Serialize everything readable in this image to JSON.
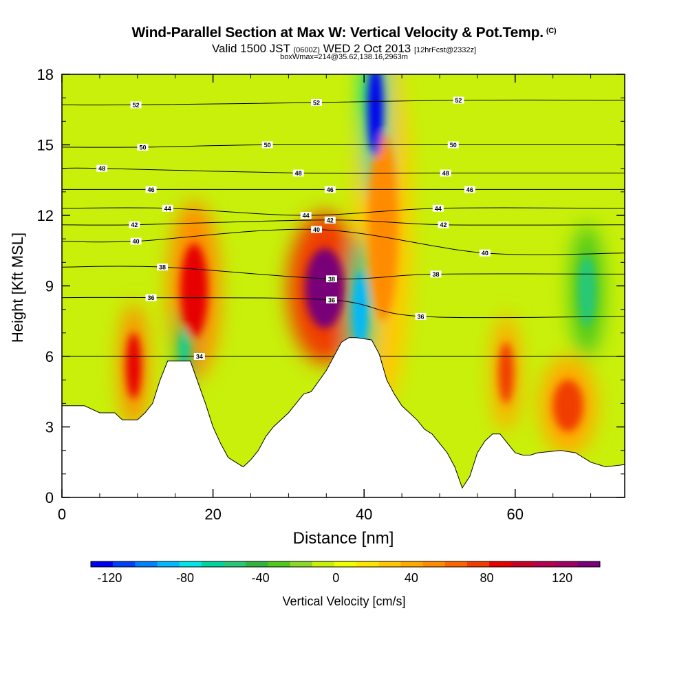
{
  "header": {
    "title": "Wind-Parallel Section at Max W: Vertical Velocity & Pot.Temp.",
    "copyright": "(C)",
    "valid_prefix": "Valid 1500 JST",
    "valid_utc": "(0600Z)",
    "valid_date": "WED 2 Oct 2013",
    "forecast": "[12hrFcst@2332z]",
    "box_info": "boxWmax=214@35.62,138.16,2963m"
  },
  "colors": {
    "frame": "#000000",
    "terrain": "#ffffff",
    "contour": "#000000",
    "scale": [
      "#0000f0",
      "#0040f8",
      "#0080ff",
      "#00b8ff",
      "#00e6e6",
      "#00d2a0",
      "#28c878",
      "#30b43c",
      "#50c81e",
      "#8cd728",
      "#c8f00a",
      "#f0ff00",
      "#ffe600",
      "#ffc800",
      "#ffaa00",
      "#ff8c00",
      "#ff6400",
      "#f03c00",
      "#e60000",
      "#c80028",
      "#b40050",
      "#a00064",
      "#780078"
    ]
  },
  "chart_data": {
    "type": "heatmap",
    "xlabel": "Distance [nm]",
    "ylabel": "Height [Kft MSL]",
    "colorbar_label": "Vertical Velocity [cm/s]",
    "xlim": [
      0,
      74.5
    ],
    "ylim": [
      0,
      18
    ],
    "xticks": [
      0,
      20,
      40,
      60
    ],
    "yticks": [
      0,
      3,
      6,
      9,
      12,
      15,
      18
    ],
    "colorbar_ticks": [
      "-120",
      "-80",
      "-40",
      "0",
      "40",
      "80",
      "120"
    ],
    "colorbar_range": [
      -130,
      140
    ],
    "terrain_profile": [
      [
        0,
        3.9
      ],
      [
        2,
        3.9
      ],
      [
        3,
        3.9
      ],
      [
        5,
        3.6
      ],
      [
        7,
        3.6
      ],
      [
        8,
        3.3
      ],
      [
        10,
        3.3
      ],
      [
        11,
        3.6
      ],
      [
        12,
        4.0
      ],
      [
        13,
        5.0
      ],
      [
        14,
        5.8
      ],
      [
        15,
        5.8
      ],
      [
        17,
        5.8
      ],
      [
        18,
        4.9
      ],
      [
        19,
        4.0
      ],
      [
        20,
        3.0
      ],
      [
        21,
        2.3
      ],
      [
        22,
        1.7
      ],
      [
        23,
        1.5
      ],
      [
        24,
        1.3
      ],
      [
        25,
        1.6
      ],
      [
        26,
        2.0
      ],
      [
        27,
        2.6
      ],
      [
        28,
        3.0
      ],
      [
        29,
        3.3
      ],
      [
        30,
        3.6
      ],
      [
        31,
        4.0
      ],
      [
        32,
        4.4
      ],
      [
        33,
        4.5
      ],
      [
        35,
        5.4
      ],
      [
        36,
        6.0
      ],
      [
        37,
        6.6
      ],
      [
        38,
        6.8
      ],
      [
        39,
        6.8
      ],
      [
        41,
        6.7
      ],
      [
        42,
        6.1
      ],
      [
        43,
        5.0
      ],
      [
        44,
        4.4
      ],
      [
        45,
        3.9
      ],
      [
        46,
        3.6
      ],
      [
        47,
        3.3
      ],
      [
        48,
        2.9
      ],
      [
        49,
        2.7
      ],
      [
        50,
        2.3
      ],
      [
        51,
        1.9
      ],
      [
        52,
        1.3
      ],
      [
        53,
        0.4
      ],
      [
        54,
        0.9
      ],
      [
        55,
        1.9
      ],
      [
        56,
        2.4
      ],
      [
        57,
        2.7
      ],
      [
        58,
        2.7
      ],
      [
        59,
        2.3
      ],
      [
        60,
        1.9
      ],
      [
        61,
        1.8
      ],
      [
        62,
        1.8
      ],
      [
        63,
        1.9
      ],
      [
        66,
        2.0
      ],
      [
        68,
        1.9
      ],
      [
        70,
        1.5
      ],
      [
        72,
        1.3
      ],
      [
        74.5,
        1.4
      ]
    ],
    "vertical_velocity_features": [
      {
        "x": 9.5,
        "y": 5.6,
        "w": 1.0,
        "h": 1.4,
        "value": 90
      },
      {
        "x": 17.5,
        "y": 8.8,
        "w": 1.8,
        "h": 2.0,
        "value": 90
      },
      {
        "x": 16.2,
        "y": 6.3,
        "w": 0.6,
        "h": 0.9,
        "value": -70
      },
      {
        "x": 34.8,
        "y": 8.9,
        "w": 2.6,
        "h": 1.7,
        "value": 135
      },
      {
        "x": 42.5,
        "y": 11.5,
        "w": 2.0,
        "h": 4.0,
        "value": 55
      },
      {
        "x": 39.5,
        "y": 8.0,
        "w": 1.0,
        "h": 1.6,
        "value": -90
      },
      {
        "x": 41.5,
        "y": 16.5,
        "w": 1.0,
        "h": 2.0,
        "value": -120
      },
      {
        "x": 58.8,
        "y": 5.3,
        "w": 1.0,
        "h": 1.3,
        "value": 80
      },
      {
        "x": 67.0,
        "y": 3.9,
        "w": 2.0,
        "h": 1.1,
        "value": 75
      },
      {
        "x": 69.5,
        "y": 8.8,
        "w": 1.2,
        "h": 1.5,
        "value": -50
      }
    ],
    "potential_temperature_contours": [
      {
        "value": 34,
        "labels": [
          [
            18.2,
            6.0
          ]
        ]
      },
      {
        "value": 36,
        "labels": [
          [
            11.8,
            8.5
          ],
          [
            35.7,
            8.4
          ],
          [
            47.5,
            7.7
          ]
        ]
      },
      {
        "value": 38,
        "labels": [
          [
            13.3,
            9.8
          ],
          [
            35.7,
            9.3
          ],
          [
            49.5,
            9.5
          ]
        ]
      },
      {
        "value": 40,
        "labels": [
          [
            9.8,
            10.9
          ],
          [
            33.7,
            11.4
          ],
          [
            56.0,
            10.4
          ]
        ]
      },
      {
        "value": 42,
        "labels": [
          [
            9.6,
            11.6
          ],
          [
            35.5,
            11.8
          ],
          [
            50.5,
            11.6
          ]
        ]
      },
      {
        "value": 44,
        "labels": [
          [
            14.0,
            12.3
          ],
          [
            32.3,
            12.0
          ],
          [
            49.8,
            12.3
          ]
        ]
      },
      {
        "value": 46,
        "labels": [
          [
            11.8,
            13.1
          ],
          [
            35.5,
            13.1
          ],
          [
            54.0,
            13.1
          ]
        ]
      },
      {
        "value": 48,
        "labels": [
          [
            5.3,
            14.0
          ],
          [
            31.3,
            13.8
          ],
          [
            50.8,
            13.8
          ]
        ]
      },
      {
        "value": 50,
        "labels": [
          [
            10.7,
            14.9
          ],
          [
            27.2,
            15.0
          ],
          [
            51.8,
            15.0
          ]
        ]
      },
      {
        "value": 52,
        "labels": [
          [
            9.8,
            16.7
          ],
          [
            33.7,
            16.8
          ],
          [
            52.5,
            16.9
          ]
        ]
      }
    ]
  }
}
